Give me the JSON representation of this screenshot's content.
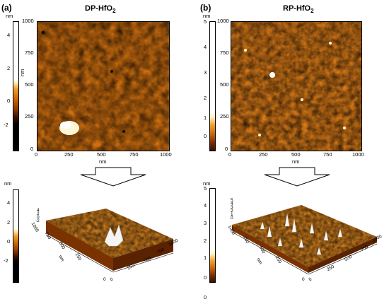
{
  "panel_a": {
    "label": "(a)",
    "title": "DP-HfO",
    "title_sub": "2",
    "unit": "nm",
    "x_axis_label": "nm",
    "x_ticks": [
      "0",
      "250",
      "500",
      "750",
      "1000"
    ],
    "y_ticks": [
      "1000",
      "750",
      "500",
      "250",
      "0"
    ],
    "colorbar_ticks": [
      "4",
      "2",
      "0",
      "-2"
    ],
    "colorbar_unit": "nm",
    "colorbar_unit_side": "nm",
    "colorbar_3d_unit": "nm",
    "colorbar_3d_ticks": [
      "4",
      "2",
      "0",
      "-2"
    ],
    "surface_z_ticks": [
      "4",
      "2",
      "0",
      "-2"
    ],
    "surface_y_ticks": [
      "1000",
      "750",
      "500",
      "250",
      "0"
    ],
    "surface_x_ticks": [
      "0",
      "250",
      "500",
      "750",
      "1000"
    ],
    "surface_axis_unit": "nm"
  },
  "panel_b": {
    "label": "(b)",
    "title": "RP-HfO",
    "title_sub": "2",
    "unit": "nm",
    "x_axis_label": "nm",
    "x_ticks": [
      "0",
      "250",
      "500",
      "750",
      "1000"
    ],
    "y_ticks": [
      "1000",
      "750",
      "500",
      "250",
      "0"
    ],
    "colorbar_ticks": [
      "5",
      "4",
      "3",
      "2",
      "1",
      "0"
    ],
    "colorbar_unit": "nm",
    "colorbar_3d_unit": "nm",
    "colorbar_3d_ticks": [
      "5",
      "4",
      "3",
      "2",
      "1",
      "0"
    ],
    "surface_z_ticks": [
      "5",
      "4",
      "3",
      "2",
      "1",
      "0"
    ],
    "surface_y_ticks": [
      "1000",
      "750",
      "500",
      "250",
      "0"
    ],
    "surface_x_ticks": [
      "0",
      "250",
      "500",
      "750",
      "1000"
    ],
    "surface_axis_unit": "nm",
    "bottom_zero": "0"
  },
  "colors": {
    "afm_dark": "#3a1400",
    "afm_mid": "#c8680a",
    "afm_light": "#f0a030",
    "afm_highlight": "#fff2c0"
  }
}
